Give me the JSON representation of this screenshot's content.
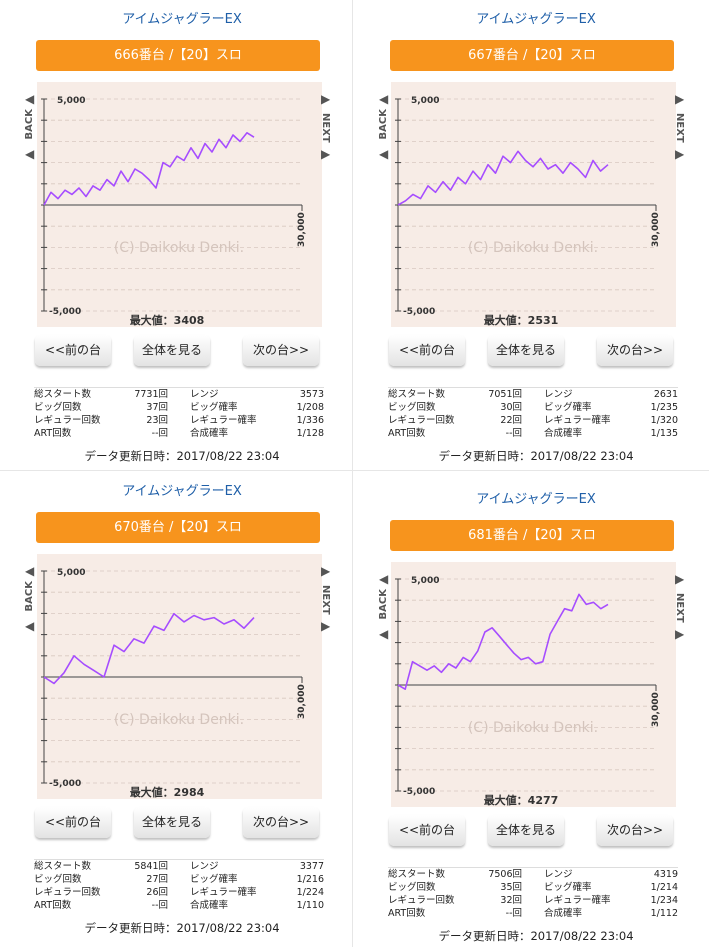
{
  "panels": [
    {
      "game_title": "アイムジャグラーEX",
      "machine_label": "666番台 /【20】スロ",
      "chart": {
        "y_top_label": "5,000",
        "y_bottom_label": "-5,000",
        "x_right_label": "30,000",
        "watermark": "(C) Daikoku Denki.",
        "max_label": "最大値：3408",
        "line_color": "#a64dff",
        "chart_data": {
          "type": "line",
          "x_max": 30000,
          "ylim": [
            -5000,
            5000
          ],
          "y_max_value": 3408,
          "values": [
            0,
            600,
            300,
            700,
            500,
            800,
            400,
            900,
            700,
            1200,
            900,
            1600,
            1100,
            1700,
            1500,
            1200,
            800,
            2000,
            1800,
            2300,
            2100,
            2700,
            2200,
            2900,
            2500,
            3100,
            2700,
            3300,
            3000,
            3408,
            3200
          ]
        }
      },
      "buttons": {
        "prev": "<<前の台",
        "all": "全体を見る",
        "next": "次の台>>"
      },
      "stats": [
        {
          "label": "総スタート数",
          "value": "7731回",
          "label2": "レンジ",
          "value2": "3573"
        },
        {
          "label": "ビッグ回数",
          "value": "37回",
          "label2": "ビッグ確率",
          "value2": "1/208"
        },
        {
          "label": "レギュラー回数",
          "value": "23回",
          "label2": "レギュラー確率",
          "value2": "1/336"
        },
        {
          "label": "ART回数",
          "value": "--回",
          "label2": "合成確率",
          "value2": "1/128"
        }
      ],
      "update_text": "データ更新日時：2017/08/22 23:04"
    },
    {
      "game_title": "アイムジャグラーEX",
      "machine_label": "667番台 /【20】スロ",
      "chart": {
        "y_top_label": "5,000",
        "y_bottom_label": "-5,000",
        "x_right_label": "30,000",
        "watermark": "(C) Daikoku Denki.",
        "max_label": "最大値：2531",
        "line_color": "#a64dff",
        "chart_data": {
          "type": "line",
          "x_max": 30000,
          "ylim": [
            -5000,
            5000
          ],
          "y_max_value": 2531,
          "values": [
            0,
            200,
            500,
            300,
            900,
            600,
            1100,
            700,
            1300,
            1000,
            1600,
            1200,
            1900,
            1500,
            2300,
            2000,
            2531,
            2100,
            1800,
            2200,
            1700,
            1900,
            1500,
            2000,
            1700,
            1300,
            2100,
            1600,
            1900
          ]
        }
      },
      "buttons": {
        "prev": "<<前の台",
        "all": "全体を見る",
        "next": "次の台>>"
      },
      "stats": [
        {
          "label": "総スタート数",
          "value": "7051回",
          "label2": "レンジ",
          "value2": "2631"
        },
        {
          "label": "ビッグ回数",
          "value": "30回",
          "label2": "ビッグ確率",
          "value2": "1/235"
        },
        {
          "label": "レギュラー回数",
          "value": "22回",
          "label2": "レギュラー確率",
          "value2": "1/320"
        },
        {
          "label": "ART回数",
          "value": "--回",
          "label2": "合成確率",
          "value2": "1/135"
        }
      ],
      "update_text": "データ更新日時：2017/08/22 23:04"
    },
    {
      "game_title": "アイムジャグラーEX",
      "machine_label": "670番台 /【20】スロ",
      "chart": {
        "y_top_label": "5,000",
        "y_bottom_label": "-5,000",
        "x_right_label": "30,000",
        "watermark": "(C) Daikoku Denki.",
        "max_label": "最大値：2984",
        "line_color": "#a64dff",
        "chart_data": {
          "type": "line",
          "x_max": 30000,
          "ylim": [
            -5000,
            5000
          ],
          "y_max_value": 2984,
          "values": [
            0,
            -300,
            200,
            1000,
            600,
            300,
            0,
            1500,
            1200,
            1800,
            1600,
            2400,
            2200,
            2984,
            2600,
            2900,
            2700,
            2800,
            2500,
            2700,
            2300,
            2800
          ]
        }
      },
      "buttons": {
        "prev": "<<前の台",
        "all": "全体を見る",
        "next": "次の台>>"
      },
      "stats": [
        {
          "label": "総スタート数",
          "value": "5841回",
          "label2": "レンジ",
          "value2": "3377"
        },
        {
          "label": "ビッグ回数",
          "value": "27回",
          "label2": "ビッグ確率",
          "value2": "1/216"
        },
        {
          "label": "レギュラー回数",
          "value": "26回",
          "label2": "レギュラー確率",
          "value2": "1/224"
        },
        {
          "label": "ART回数",
          "value": "--回",
          "label2": "合成確率",
          "value2": "1/110"
        }
      ],
      "update_text": "データ更新日時：2017/08/22 23:04"
    },
    {
      "game_title": "アイムジャグラーEX",
      "machine_label": "681番台 /【20】スロ",
      "chart": {
        "y_top_label": "5,000",
        "y_bottom_label": "-5,000",
        "x_right_label": "30,000",
        "watermark": "(C) Daikoku Denki.",
        "max_label": "最大値：4277",
        "line_color": "#a64dff",
        "chart_data": {
          "type": "line",
          "x_max": 30000,
          "ylim": [
            -5000,
            5000
          ],
          "y_max_value": 4277,
          "values": [
            0,
            -200,
            1100,
            900,
            700,
            900,
            600,
            1000,
            800,
            1300,
            1100,
            1600,
            2500,
            2700,
            2300,
            1900,
            1500,
            1200,
            1300,
            1000,
            1100,
            2400,
            3000,
            3600,
            3500,
            4277,
            3800,
            3900,
            3600,
            3800
          ]
        }
      },
      "buttons": {
        "prev": "<<前の台",
        "all": "全体を見る",
        "next": "次の台>>"
      },
      "stats": [
        {
          "label": "総スタート数",
          "value": "7506回",
          "label2": "レンジ",
          "value2": "4319"
        },
        {
          "label": "ビッグ回数",
          "value": "35回",
          "label2": "ビッグ確率",
          "value2": "1/214"
        },
        {
          "label": "レギュラー回数",
          "value": "32回",
          "label2": "レギュラー確率",
          "value2": "1/234"
        },
        {
          "label": "ART回数",
          "value": "--回",
          "label2": "合成確率",
          "value2": "1/112"
        }
      ],
      "update_text": "データ更新日時：2017/08/22 23:04"
    }
  ],
  "nav": {
    "back_label": "BACK",
    "next_label": "NEXT",
    "left_arrow": "◀",
    "right_arrow": "▶"
  }
}
